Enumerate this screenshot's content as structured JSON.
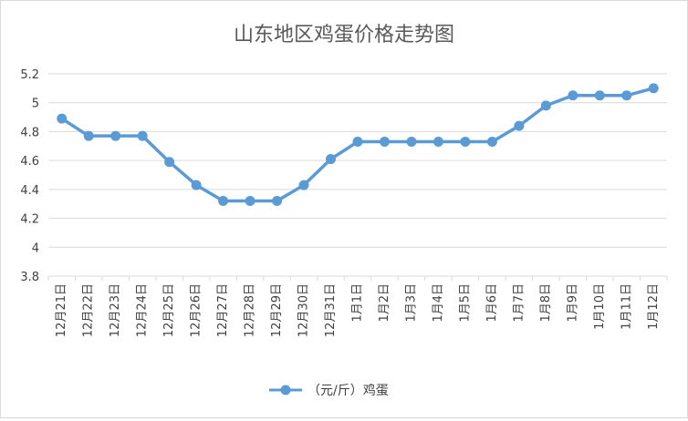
{
  "chart_data": {
    "type": "line",
    "title": "山东地区鸡蛋价格走势图",
    "xlabel": "",
    "ylabel": "",
    "ylim": [
      3.8,
      5.2
    ],
    "yticks": [
      "3.8",
      "4",
      "4.2",
      "4.4",
      "4.6",
      "4.8",
      "5",
      "5.2"
    ],
    "grid": true,
    "legend": "bottom",
    "categories": [
      "12月21日",
      "12月22日",
      "12月23日",
      "12月24日",
      "12月25日",
      "12月26日",
      "12月27日",
      "12月28日",
      "12月29日",
      "12月30日",
      "12月31日",
      "1月1日",
      "1月2日",
      "1月3日",
      "1月4日",
      "1月5日",
      "1月6日",
      "1月7日",
      "1月8日",
      "1月9日",
      "1月10日",
      "1月11日",
      "1月12日"
    ],
    "series": [
      {
        "name": "（元/斤）鸡蛋",
        "color": "#5b9bd5",
        "values": [
          4.89,
          4.77,
          4.77,
          4.77,
          4.59,
          4.43,
          4.32,
          4.32,
          4.32,
          4.43,
          4.61,
          4.73,
          4.73,
          4.73,
          4.73,
          4.73,
          4.73,
          4.84,
          4.98,
          5.05,
          5.05,
          5.05,
          5.1
        ]
      }
    ]
  }
}
